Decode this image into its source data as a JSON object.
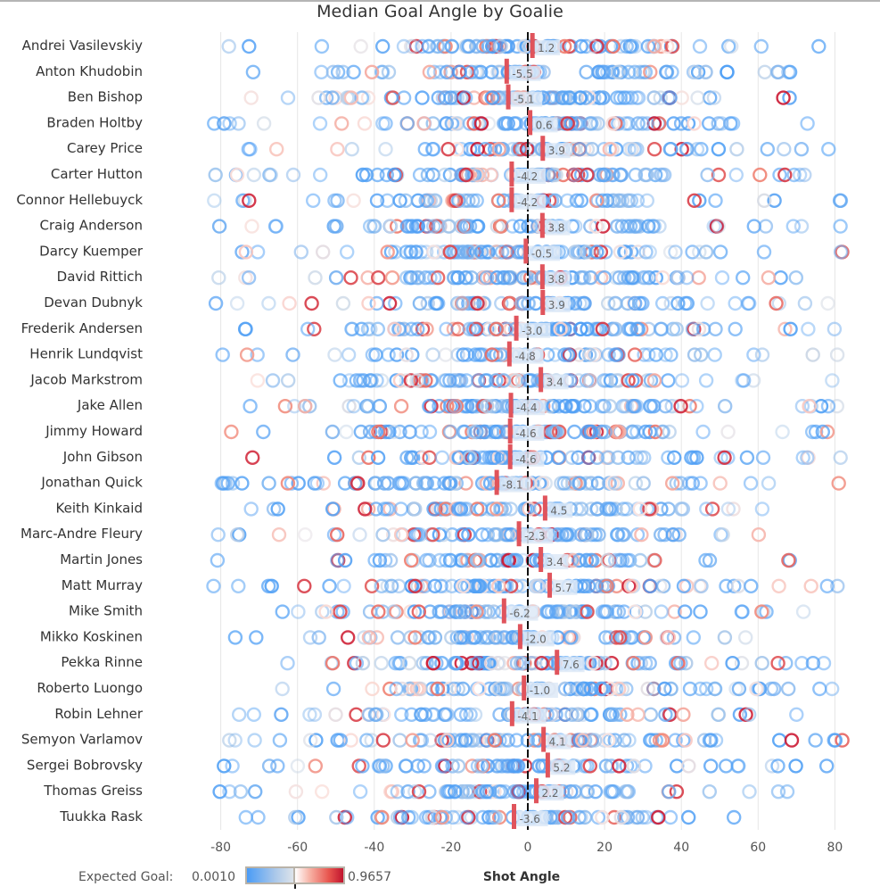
{
  "title": "Median Goal Angle by Goalie",
  "chart_data": {
    "type": "scatter",
    "title": "Median Goal Angle by Goalie",
    "xlabel": "Shot Angle",
    "ylabel": "",
    "xlim": [
      -87,
      87
    ],
    "xticks": [
      -80,
      -60,
      -40,
      -20,
      0,
      20,
      40,
      60,
      80
    ],
    "xtick_labels": [
      "-80",
      "-60",
      "-40",
      "-20",
      "0",
      "20",
      "40",
      "60",
      "80"
    ],
    "grid": true,
    "reference_line": 0,
    "categories": [
      "Andrei Vasilevskiy",
      "Anton Khudobin",
      "Ben Bishop",
      "Braden Holtby",
      "Carey Price",
      "Carter Hutton",
      "Connor Hellebuyck",
      "Craig Anderson",
      "Darcy Kuemper",
      "David Rittich",
      "Devan Dubnyk",
      "Frederik Andersen",
      "Henrik Lundqvist",
      "Jacob Markstrom",
      "Jake Allen",
      "Jimmy Howard",
      "John Gibson",
      "Jonathan Quick",
      "Keith Kinkaid",
      "Marc-Andre Fleury",
      "Martin Jones",
      "Matt Murray",
      "Mike Smith",
      "Mikko Koskinen",
      "Pekka Rinne",
      "Roberto Luongo",
      "Robin Lehner",
      "Semyon Varlamov",
      "Sergei Bobrovsky",
      "Thomas Greiss",
      "Tuukka Rask"
    ],
    "median_goal_angle": [
      1.2,
      -5.5,
      -5.1,
      0.6,
      3.9,
      -4.2,
      -4.2,
      3.8,
      -0.5,
      3.8,
      3.9,
      -3.0,
      -4.8,
      3.4,
      -4.4,
      -4.6,
      -4.6,
      -8.1,
      4.5,
      -2.3,
      3.4,
      5.7,
      -6.2,
      -2.0,
      7.6,
      -1.0,
      -4.1,
      4.1,
      5.2,
      2.2,
      -3.6
    ],
    "median_labels": [
      "1.2",
      "-5.5",
      "-5.1",
      "0.6",
      "3.9",
      "-4.2",
      "-4.2",
      "3.8",
      "-0.5",
      "3.8",
      "3.9",
      "-3.0",
      "-4.8",
      "3.4",
      "-4.4",
      "-4.6",
      "-4.6",
      "-8.1",
      "4.5",
      "-2.3",
      "3.4",
      "5.7",
      "-6.2",
      "-2.0",
      "7.6",
      "-1.0",
      "-4.1",
      "4.1",
      "5.2",
      "2.2",
      "-3.6"
    ],
    "shot_angle_range": [
      -85,
      85
    ],
    "color_encoding": {
      "field": "Expected Goal",
      "min": 0.001,
      "max": 0.9657,
      "min_label": "0.0010",
      "max_label": "0.9657"
    }
  },
  "legend": {
    "label": "Expected Goal:",
    "min_label": "0.0010",
    "max_label": "0.9657"
  },
  "colors": {
    "low": "#5aa5f5",
    "mid": "#f4f4f4",
    "high": "#c0182f",
    "median_bar": "#e0545c",
    "zero_line": "#111111",
    "grid": "#e6e6e6"
  }
}
